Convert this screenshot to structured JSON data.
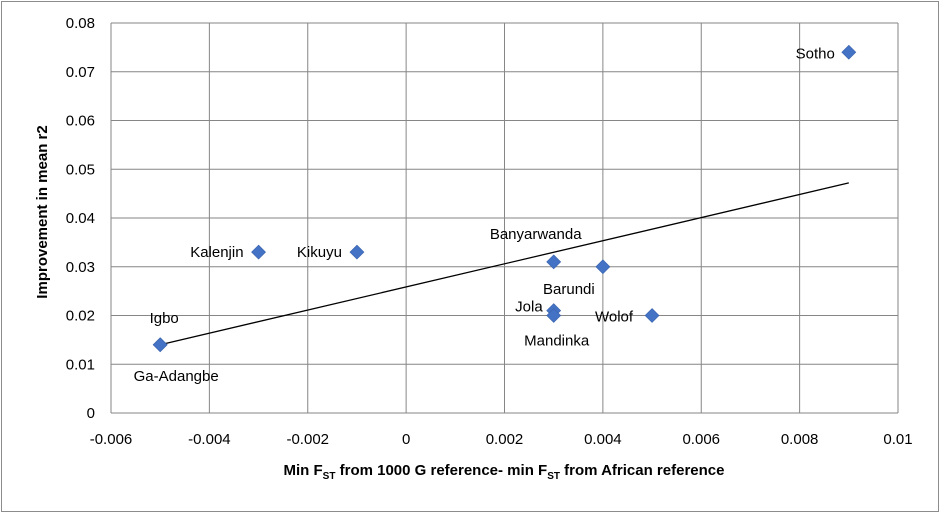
{
  "chart_data": {
    "type": "scatter",
    "xlabel": {
      "part1": "Min F",
      "sub1": "ST",
      "part2": " from 1000 G reference- min F",
      "sub2": "ST",
      "part3": " from African reference"
    },
    "ylabel": "Improvement in mean r2",
    "xlim": [
      -0.006,
      0.01
    ],
    "ylim": [
      0,
      0.08
    ],
    "x_ticks": [
      -0.006,
      -0.004,
      -0.002,
      0,
      0.002,
      0.004,
      0.006,
      0.008,
      0.01
    ],
    "x_tick_labels": [
      "-0.006",
      "-0.004",
      "-0.002",
      "0",
      "0.002",
      "0.004",
      "0.006",
      "0.008",
      "0.01"
    ],
    "y_ticks": [
      0,
      0.01,
      0.02,
      0.03,
      0.04,
      0.05,
      0.06,
      0.07,
      0.08
    ],
    "y_tick_labels": [
      "0",
      "0.01",
      "0.02",
      "0.03",
      "0.04",
      "0.05",
      "0.06",
      "0.07",
      "0.08"
    ],
    "grid": true,
    "marker_color": "#4472c4",
    "trendline_color": "#000000",
    "trendline": {
      "x": [
        -0.005,
        0.009
      ],
      "y": [
        0.014,
        0.0472
      ]
    },
    "points": [
      {
        "name": "Sotho",
        "x": 0.009,
        "y": 0.074
      },
      {
        "name": "Kalenjin",
        "x": -0.003,
        "y": 0.033
      },
      {
        "name": "Kikuyu",
        "x": -0.001,
        "y": 0.033
      },
      {
        "name": "Banyarwanda",
        "x": 0.003,
        "y": 0.031
      },
      {
        "name": "Barundi",
        "x": 0.004,
        "y": 0.03
      },
      {
        "name": "Jola",
        "x": 0.003,
        "y": 0.021
      },
      {
        "name": "Wolof",
        "x": 0.005,
        "y": 0.02
      },
      {
        "name": "Mandinka",
        "x": 0.003,
        "y": 0.02
      },
      {
        "name": "Igbo",
        "x": -0.005,
        "y": 0.014
      },
      {
        "name": "Ga-Adangbe",
        "x": -0.005,
        "y": 0.014
      }
    ]
  }
}
